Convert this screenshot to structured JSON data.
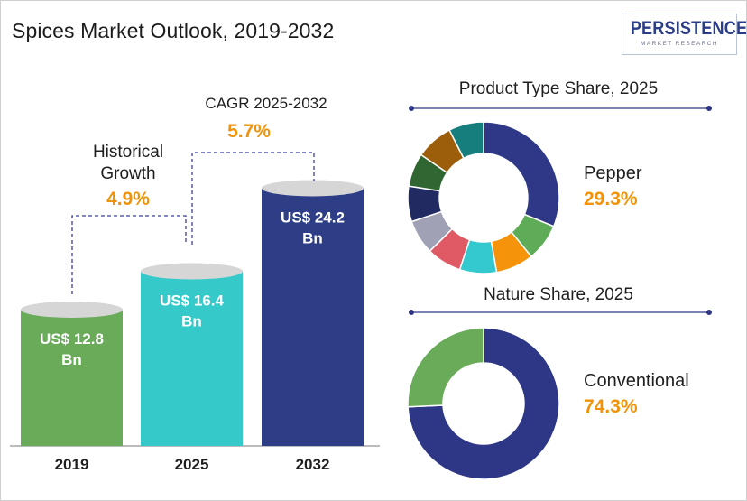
{
  "page": {
    "title": "Spices Market Outlook, 2019-2032",
    "logo": {
      "main": "PERSISTENCE",
      "sub": "MARKET RESEARCH"
    }
  },
  "annotations": {
    "historical": {
      "label_line1": "Historical",
      "label_line2": "Growth",
      "value": "4.9%"
    },
    "cagr": {
      "label": "CAGR 2025-2032",
      "value": "5.7%"
    }
  },
  "colors": {
    "accent": "#f0930a",
    "bar_2019": "#6aab59",
    "bar_2025": "#35c9c9",
    "bar_2032": "#2d3e87",
    "navy": "#2d3785",
    "green": "#6aab59"
  },
  "chart_data": [
    {
      "type": "bar",
      "categories": [
        "2019",
        "2025",
        "2032"
      ],
      "values": [
        12.8,
        16.4,
        24.2
      ],
      "value_labels": [
        [
          "US$ 12.8",
          "Bn"
        ],
        [
          "US$ 16.4",
          "Bn"
        ],
        [
          "US$ 24.2",
          "Bn"
        ]
      ],
      "colors": [
        "#6aab59",
        "#35c9c9",
        "#2d3e87"
      ]
    },
    {
      "type": "pie",
      "title": "Product Type Share, 2025",
      "highlight": {
        "label": "Pepper",
        "value": "29.3%"
      },
      "values": [
        29.3,
        7.5,
        7.6,
        7.4,
        7.0,
        6.9,
        7.1,
        6.7,
        7.5,
        7.0
      ],
      "colors": [
        "#2e3886",
        "#5eab58",
        "#f5940a",
        "#33c9ce",
        "#e05a65",
        "#a1a1b5",
        "#212b62",
        "#306631",
        "#9c5e0a",
        "#167f7d"
      ]
    },
    {
      "type": "pie",
      "title": "Nature Share, 2025",
      "highlight": {
        "label": "Conventional",
        "value": "74.3%"
      },
      "values": [
        74.3,
        25.7
      ],
      "colors": [
        "#2d3785",
        "#6aab59"
      ]
    }
  ]
}
